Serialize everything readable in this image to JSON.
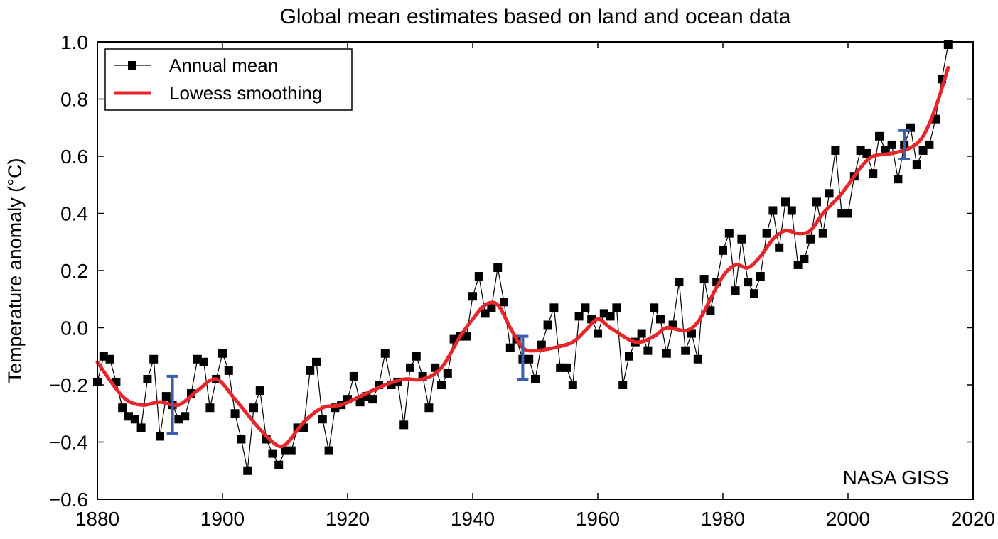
{
  "chart_data": {
    "type": "line",
    "title": "Global mean estimates based on land and ocean data",
    "xlabel": "",
    "ylabel": "Temperature anomaly (°C)",
    "xlim": [
      1880,
      2020
    ],
    "ylim": [
      -0.6,
      1.0
    ],
    "xticks": [
      "1880",
      "1900",
      "1920",
      "1940",
      "1960",
      "1980",
      "2000",
      "2020"
    ],
    "yticks": [
      "−0.6",
      "−0.4",
      "−0.2",
      "0.0",
      "0.2",
      "0.4",
      "0.6",
      "0.8",
      "1.0"
    ],
    "grid": false,
    "legend_position": "top-left",
    "annotation": "NASA GISS",
    "colors": {
      "annual": "#000000",
      "smooth": "#e8262a",
      "error_bar": "#3a5fb0"
    },
    "series": [
      {
        "name": "Annual mean",
        "style": "line-with-square-markers",
        "x_start": 1880,
        "values": [
          -0.19,
          -0.1,
          -0.11,
          -0.19,
          -0.28,
          -0.31,
          -0.32,
          -0.35,
          -0.18,
          -0.11,
          -0.38,
          -0.24,
          -0.27,
          -0.32,
          -0.31,
          -0.23,
          -0.11,
          -0.12,
          -0.28,
          -0.18,
          -0.09,
          -0.15,
          -0.3,
          -0.39,
          -0.5,
          -0.28,
          -0.22,
          -0.39,
          -0.44,
          -0.48,
          -0.43,
          -0.43,
          -0.35,
          -0.35,
          -0.15,
          -0.12,
          -0.32,
          -0.43,
          -0.28,
          -0.27,
          -0.25,
          -0.17,
          -0.26,
          -0.24,
          -0.25,
          -0.2,
          -0.09,
          -0.2,
          -0.19,
          -0.34,
          -0.14,
          -0.1,
          -0.17,
          -0.28,
          -0.14,
          -0.2,
          -0.16,
          -0.04,
          -0.03,
          -0.03,
          0.11,
          0.18,
          0.05,
          0.07,
          0.21,
          0.09,
          -0.07,
          -0.04,
          -0.11,
          -0.11,
          -0.18,
          -0.06,
          0.01,
          0.07,
          -0.14,
          -0.14,
          -0.2,
          0.04,
          0.07,
          0.03,
          -0.02,
          0.05,
          0.04,
          0.07,
          -0.2,
          -0.1,
          -0.05,
          -0.02,
          -0.08,
          0.07,
          0.03,
          -0.09,
          0.01,
          0.16,
          -0.08,
          -0.02,
          -0.11,
          0.17,
          0.06,
          0.16,
          0.27,
          0.33,
          0.13,
          0.31,
          0.16,
          0.12,
          0.18,
          0.33,
          0.41,
          0.28,
          0.44,
          0.41,
          0.22,
          0.24,
          0.31,
          0.44,
          0.33,
          0.47,
          0.62,
          0.4,
          0.4,
          0.53,
          0.62,
          0.61,
          0.54,
          0.67,
          0.62,
          0.64,
          0.52,
          0.64,
          0.7,
          0.57,
          0.62,
          0.64,
          0.73,
          0.87,
          0.99
        ]
      },
      {
        "name": "Lowess smoothing",
        "style": "thick-line",
        "points": [
          [
            1880,
            -0.12
          ],
          [
            1884,
            -0.24
          ],
          [
            1887,
            -0.27
          ],
          [
            1890,
            -0.26
          ],
          [
            1893,
            -0.27
          ],
          [
            1896,
            -0.22
          ],
          [
            1899,
            -0.18
          ],
          [
            1902,
            -0.25
          ],
          [
            1905,
            -0.33
          ],
          [
            1908,
            -0.4
          ],
          [
            1910,
            -0.41
          ],
          [
            1913,
            -0.33
          ],
          [
            1916,
            -0.28
          ],
          [
            1919,
            -0.27
          ],
          [
            1922,
            -0.24
          ],
          [
            1926,
            -0.2
          ],
          [
            1929,
            -0.18
          ],
          [
            1932,
            -0.18
          ],
          [
            1935,
            -0.14
          ],
          [
            1938,
            -0.03
          ],
          [
            1940,
            0.03
          ],
          [
            1942,
            0.08
          ],
          [
            1944,
            0.08
          ],
          [
            1946,
            0.0
          ],
          [
            1948,
            -0.07
          ],
          [
            1950,
            -0.08
          ],
          [
            1953,
            -0.07
          ],
          [
            1956,
            -0.05
          ],
          [
            1958,
            -0.01
          ],
          [
            1960,
            0.03
          ],
          [
            1962,
            0.0
          ],
          [
            1966,
            -0.05
          ],
          [
            1969,
            -0.03
          ],
          [
            1971,
            0.0
          ],
          [
            1974,
            -0.01
          ],
          [
            1976,
            0.02
          ],
          [
            1978,
            0.1
          ],
          [
            1980,
            0.18
          ],
          [
            1982,
            0.22
          ],
          [
            1984,
            0.21
          ],
          [
            1986,
            0.25
          ],
          [
            1988,
            0.31
          ],
          [
            1990,
            0.34
          ],
          [
            1992,
            0.33
          ],
          [
            1994,
            0.34
          ],
          [
            1996,
            0.4
          ],
          [
            1999,
            0.47
          ],
          [
            2002,
            0.56
          ],
          [
            2004,
            0.6
          ],
          [
            2007,
            0.61
          ],
          [
            2010,
            0.63
          ],
          [
            2012,
            0.67
          ],
          [
            2014,
            0.77
          ],
          [
            2016,
            0.91
          ]
        ]
      }
    ],
    "error_bars": [
      {
        "x": 1892,
        "low": -0.37,
        "high": -0.17
      },
      {
        "x": 1948,
        "low": -0.18,
        "high": -0.03
      },
      {
        "x": 2009,
        "low": 0.59,
        "high": 0.69
      }
    ]
  }
}
